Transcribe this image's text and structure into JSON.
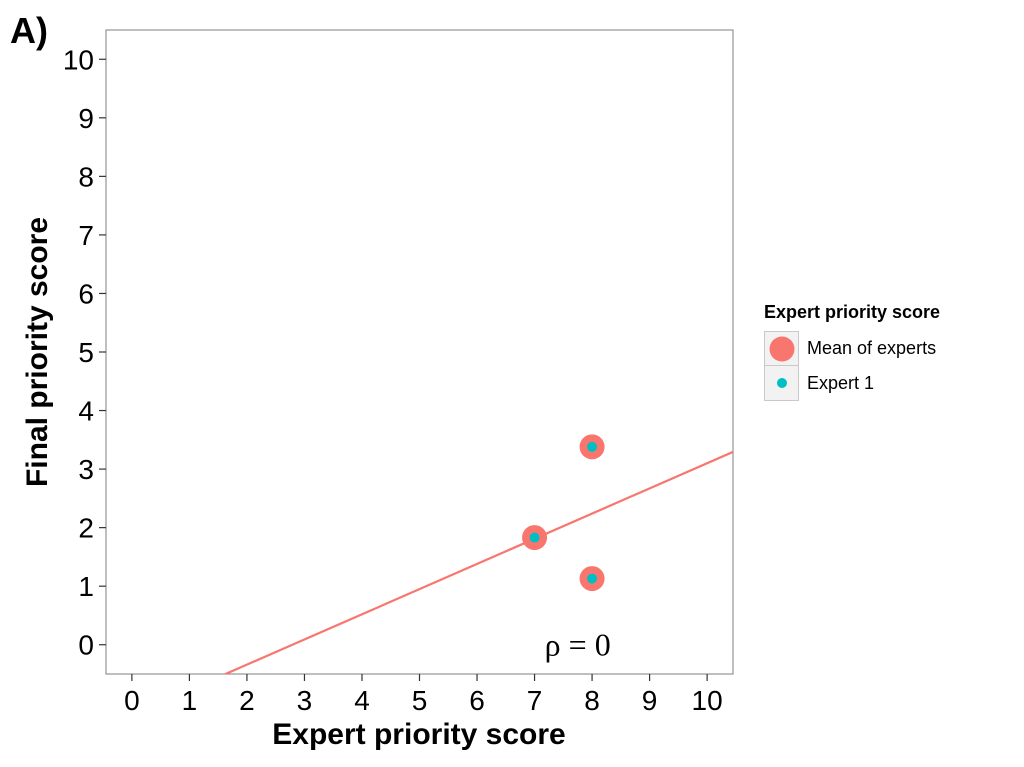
{
  "panel_label": "A)",
  "colors": {
    "mean": "#F8766D",
    "expert": "#00BFC4",
    "frame": "#7f7f7f"
  },
  "chart_data": {
    "type": "scatter",
    "title": "",
    "xlabel": "Expert priority score",
    "ylabel": "Final priority score",
    "xlim": [
      -0.45,
      10.45
    ],
    "ylim": [
      -0.5,
      10.5
    ],
    "x_ticks": [
      0,
      1,
      2,
      3,
      4,
      5,
      6,
      7,
      8,
      9,
      10
    ],
    "y_ticks": [
      0,
      1,
      2,
      3,
      4,
      5,
      6,
      7,
      8,
      9,
      10
    ],
    "grid": false,
    "legend_position": "right",
    "legend_title": "Expert priority score",
    "series": [
      {
        "name": "Mean of experts",
        "points": [
          [
            7,
            1.83
          ],
          [
            8,
            3.38
          ],
          [
            8,
            1.13
          ]
        ]
      },
      {
        "name": "Expert 1",
        "points": [
          [
            7,
            1.83
          ],
          [
            8,
            3.38
          ],
          [
            8,
            1.13
          ]
        ]
      }
    ],
    "fit_line": {
      "slope": 0.43,
      "intercept": -1.2
    },
    "annotation": {
      "text": "ρ = 0",
      "x": 7.75,
      "y": 0
    }
  }
}
